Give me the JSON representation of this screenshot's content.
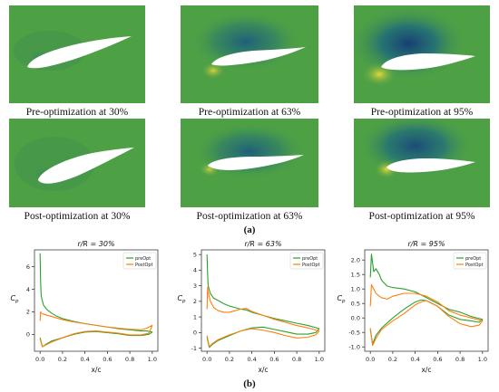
{
  "contours": {
    "captions": [
      "Pre-optimization at 30%",
      "Pre-optimization at 63%",
      "Pre-optimization at 95%",
      "Post-optimization at 30%",
      "Post-optimization at 63%",
      "Post-optimization at 95%"
    ],
    "colors": {
      "base": "#4ea045",
      "suction": "#1f5f7a",
      "stagnation": "#e0d33a"
    }
  },
  "labels": {
    "a": "(a)",
    "b": "(b)"
  },
  "chart_data": [
    {
      "type": "line",
      "title": "r/R = 30%",
      "xlabel": "x/c",
      "ylabel": "Cp",
      "xlim": [
        -0.05,
        1.05
      ],
      "ylim": [
        -1.5,
        7.5
      ],
      "xticks": [
        "0.0",
        "0.2",
        "0.4",
        "0.6",
        "0.8",
        "1.0"
      ],
      "yticks": [
        "0",
        "2",
        "4",
        "6"
      ],
      "legend": {
        "placement": "top-right",
        "entries": [
          "preOpt",
          "PostOpt"
        ]
      },
      "series": [
        {
          "name": "preOpt",
          "color": "#2ca02c",
          "x": [
            0.0,
            0.005,
            0.01,
            0.03,
            0.06,
            0.1,
            0.15,
            0.2,
            0.3,
            0.4,
            0.5,
            0.6,
            0.7,
            0.8,
            0.9,
            0.95,
            1.0,
            0.97,
            0.9,
            0.8,
            0.7,
            0.6,
            0.5,
            0.4,
            0.3,
            0.2,
            0.1,
            0.05,
            0.02,
            0.0
          ],
          "y": [
            7.2,
            4.5,
            3.4,
            2.6,
            2.2,
            1.9,
            1.6,
            1.4,
            1.15,
            0.95,
            0.8,
            0.65,
            0.5,
            0.4,
            0.3,
            0.3,
            0.2,
            0.0,
            -0.1,
            -0.1,
            0.05,
            0.15,
            0.25,
            0.2,
            0.0,
            -0.3,
            -0.6,
            -0.9,
            -1.1,
            -0.3
          ]
        },
        {
          "name": "PostOpt",
          "color": "#ff7f0e",
          "x": [
            0.0,
            0.005,
            0.01,
            0.03,
            0.06,
            0.1,
            0.15,
            0.2,
            0.3,
            0.4,
            0.5,
            0.6,
            0.7,
            0.8,
            0.9,
            0.95,
            1.0,
            0.97,
            0.9,
            0.8,
            0.7,
            0.6,
            0.5,
            0.4,
            0.3,
            0.2,
            0.1,
            0.05,
            0.02,
            0.0
          ],
          "y": [
            1.2,
            2.0,
            1.9,
            1.8,
            1.7,
            1.6,
            1.45,
            1.3,
            1.1,
            0.95,
            0.8,
            0.65,
            0.55,
            0.45,
            0.4,
            0.55,
            0.8,
            0.1,
            -0.05,
            -0.05,
            0.1,
            0.2,
            0.3,
            0.25,
            0.05,
            -0.3,
            -0.7,
            -0.95,
            -1.1,
            -0.4
          ]
        }
      ]
    },
    {
      "type": "line",
      "title": "r/R = 63%",
      "xlabel": "x/c",
      "ylabel": "Cp",
      "xlim": [
        -0.05,
        1.05
      ],
      "ylim": [
        -1.2,
        5.3
      ],
      "xticks": [
        "0.0",
        "0.2",
        "0.4",
        "0.6",
        "0.8",
        "1.0"
      ],
      "yticks": [
        "-1",
        "0",
        "1",
        "2",
        "3",
        "4",
        "5"
      ],
      "legend": {
        "placement": "top-right",
        "entries": [
          "preOpt",
          "PostOpt"
        ]
      },
      "series": [
        {
          "name": "preOpt",
          "color": "#2ca02c",
          "x": [
            0.0,
            0.005,
            0.01,
            0.03,
            0.06,
            0.1,
            0.15,
            0.2,
            0.3,
            0.35,
            0.4,
            0.5,
            0.6,
            0.7,
            0.8,
            0.9,
            1.0,
            0.97,
            0.9,
            0.8,
            0.7,
            0.6,
            0.5,
            0.4,
            0.3,
            0.2,
            0.1,
            0.05,
            0.02,
            0.0
          ],
          "y": [
            5.0,
            3.8,
            3.0,
            2.5,
            2.2,
            2.05,
            1.85,
            1.7,
            1.5,
            1.45,
            1.3,
            1.1,
            0.9,
            0.75,
            0.6,
            0.45,
            0.25,
            0.0,
            -0.1,
            -0.1,
            0.05,
            0.2,
            0.35,
            0.3,
            0.1,
            -0.2,
            -0.5,
            -0.75,
            -0.95,
            -0.3
          ]
        },
        {
          "name": "PostOpt",
          "color": "#ff7f0e",
          "x": [
            0.0,
            0.005,
            0.01,
            0.03,
            0.06,
            0.1,
            0.15,
            0.2,
            0.3,
            0.35,
            0.4,
            0.5,
            0.6,
            0.7,
            0.8,
            0.9,
            1.0,
            0.97,
            0.9,
            0.8,
            0.7,
            0.6,
            0.5,
            0.4,
            0.3,
            0.2,
            0.1,
            0.05,
            0.02,
            0.0
          ],
          "y": [
            1.5,
            2.9,
            2.6,
            2.0,
            1.6,
            1.4,
            1.3,
            1.3,
            1.5,
            1.55,
            1.35,
            1.1,
            0.85,
            0.65,
            0.45,
            0.3,
            0.1,
            -0.15,
            -0.3,
            -0.35,
            -0.2,
            0.0,
            0.15,
            0.25,
            0.1,
            -0.15,
            -0.45,
            -0.7,
            -0.9,
            -0.2
          ]
        }
      ]
    },
    {
      "type": "line",
      "title": "r/R = 95%",
      "xlabel": "x/c",
      "ylabel": "Cp",
      "xlim": [
        -0.05,
        1.05
      ],
      "ylim": [
        -1.15,
        2.35
      ],
      "xticks": [
        "0.0",
        "0.2",
        "0.4",
        "0.6",
        "0.8",
        "1.0"
      ],
      "yticks": [
        "-1.0",
        "-0.5",
        "0.0",
        "0.5",
        "1.0",
        "1.5",
        "2.0"
      ],
      "legend": {
        "placement": "top-right",
        "entries": [
          "preOpt",
          "PostOpt"
        ]
      },
      "series": [
        {
          "name": "preOpt",
          "color": "#2ca02c",
          "x": [
            0.0,
            0.01,
            0.03,
            0.05,
            0.08,
            0.1,
            0.15,
            0.2,
            0.3,
            0.4,
            0.5,
            0.6,
            0.7,
            0.8,
            0.9,
            1.0,
            0.97,
            0.9,
            0.8,
            0.7,
            0.6,
            0.5,
            0.45,
            0.4,
            0.3,
            0.2,
            0.1,
            0.05,
            0.02,
            0.0
          ],
          "y": [
            1.4,
            2.2,
            1.6,
            1.7,
            1.5,
            1.3,
            1.1,
            1.05,
            1.0,
            0.9,
            0.7,
            0.5,
            0.3,
            0.2,
            0.05,
            -0.05,
            -0.15,
            -0.1,
            -0.05,
            0.1,
            0.4,
            0.6,
            0.62,
            0.55,
            0.3,
            0.0,
            -0.35,
            -0.6,
            -0.9,
            -0.4
          ]
        },
        {
          "name": "PostOpt",
          "color": "#ff7f0e",
          "x": [
            0.0,
            0.01,
            0.03,
            0.05,
            0.08,
            0.1,
            0.15,
            0.2,
            0.3,
            0.4,
            0.5,
            0.6,
            0.7,
            0.8,
            0.9,
            1.0,
            0.97,
            0.9,
            0.8,
            0.7,
            0.6,
            0.5,
            0.45,
            0.4,
            0.3,
            0.2,
            0.1,
            0.05,
            0.02,
            0.0
          ],
          "y": [
            0.4,
            1.15,
            1.0,
            0.85,
            0.75,
            0.7,
            0.65,
            0.75,
            0.85,
            0.85,
            0.75,
            0.55,
            0.25,
            0.1,
            0.0,
            -0.1,
            -0.25,
            -0.3,
            -0.2,
            0.05,
            0.4,
            0.6,
            0.55,
            0.45,
            0.15,
            -0.1,
            -0.4,
            -0.7,
            -0.95,
            -0.35
          ]
        }
      ]
    }
  ]
}
